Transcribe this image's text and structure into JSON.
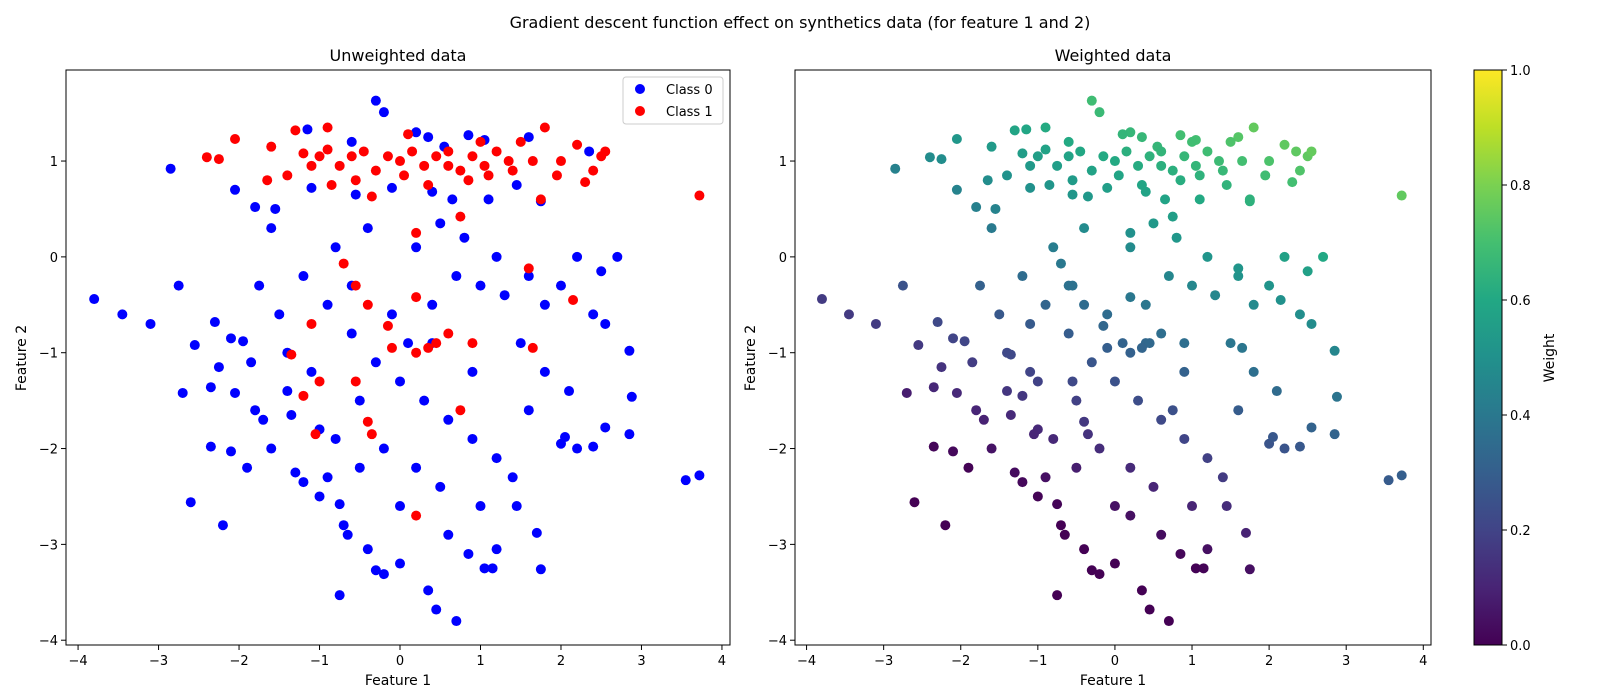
{
  "suptitle": "Gradient descent function effect on synthetics data (for feature 1 and 2)",
  "chart_data": [
    {
      "type": "scatter",
      "title": "Unweighted data",
      "xlabel": "Feature 1",
      "ylabel": "Feature 2",
      "xlim": [
        -4.15,
        4.1
      ],
      "ylim": [
        -4.05,
        1.95
      ],
      "xticks": [
        -4,
        -3,
        -2,
        -1,
        0,
        1,
        2,
        3,
        4
      ],
      "yticks": [
        -4,
        -3,
        -2,
        -1,
        0,
        1
      ],
      "xtick_labels": [
        "−4",
        "−3",
        "−2",
        "−1",
        "0",
        "1",
        "2",
        "3",
        "4"
      ],
      "ytick_labels": [
        "−4",
        "−3",
        "−2",
        "−1",
        "0",
        "1"
      ],
      "grid": false,
      "legend": {
        "position": "top-right",
        "entries": [
          "Class 0",
          "Class 1"
        ]
      },
      "series": [
        {
          "name": "Class 0",
          "color": "#0000ff",
          "points": [
            [
              -0.3,
              1.63
            ],
            [
              -0.2,
              1.51
            ],
            [
              0.35,
              1.25
            ],
            [
              0.85,
              1.27
            ],
            [
              1.05,
              1.22
            ],
            [
              1.6,
              1.25
            ],
            [
              -1.15,
              1.33
            ],
            [
              -0.6,
              1.2
            ],
            [
              0.2,
              1.3
            ],
            [
              0.55,
              1.15
            ],
            [
              -2.85,
              0.92
            ],
            [
              -2.05,
              0.7
            ],
            [
              -1.8,
              0.52
            ],
            [
              -1.55,
              0.5
            ],
            [
              -1.1,
              0.72
            ],
            [
              -0.55,
              0.65
            ],
            [
              -0.1,
              0.72
            ],
            [
              0.4,
              0.68
            ],
            [
              0.65,
              0.6
            ],
            [
              1.1,
              0.6
            ],
            [
              1.45,
              0.75
            ],
            [
              1.75,
              0.58
            ],
            [
              2.35,
              1.1
            ],
            [
              -3.8,
              -0.44
            ],
            [
              -3.45,
              -0.6
            ],
            [
              -3.1,
              -0.7
            ],
            [
              -2.75,
              -0.3
            ],
            [
              -2.55,
              -0.92
            ],
            [
              -2.3,
              -0.68
            ],
            [
              -2.25,
              -1.15
            ],
            [
              -2.7,
              -1.42
            ],
            [
              -2.35,
              -1.36
            ],
            [
              -2.6,
              -2.56
            ],
            [
              -2.2,
              -2.8
            ],
            [
              -2.35,
              -1.98
            ],
            [
              -2.1,
              -2.03
            ],
            [
              -2.05,
              -1.42
            ],
            [
              -2.1,
              -0.85
            ],
            [
              -1.95,
              -0.88
            ],
            [
              -1.85,
              -1.1
            ],
            [
              -1.9,
              -2.2
            ],
            [
              -1.8,
              -1.6
            ],
            [
              -1.7,
              -1.7
            ],
            [
              -1.75,
              -0.3
            ],
            [
              -1.6,
              0.3
            ],
            [
              -1.5,
              -0.6
            ],
            [
              -1.4,
              -1.0
            ],
            [
              -1.35,
              -1.65
            ],
            [
              -1.3,
              -2.25
            ],
            [
              -1.2,
              -2.35
            ],
            [
              -1.0,
              -1.8
            ],
            [
              -0.9,
              -2.3
            ],
            [
              -0.75,
              -2.58
            ],
            [
              -0.7,
              -2.8
            ],
            [
              -0.65,
              -2.9
            ],
            [
              -0.4,
              -3.05
            ],
            [
              -0.3,
              -3.27
            ],
            [
              -0.2,
              -3.31
            ],
            [
              0.0,
              -3.2
            ],
            [
              0.35,
              -3.48
            ],
            [
              0.45,
              -3.68
            ],
            [
              0.7,
              -3.8
            ],
            [
              -0.75,
              -3.53
            ],
            [
              0.85,
              -3.1
            ],
            [
              1.05,
              -3.25
            ],
            [
              1.15,
              -3.25
            ],
            [
              1.2,
              -3.05
            ],
            [
              1.45,
              -2.6
            ],
            [
              1.75,
              -3.26
            ],
            [
              1.7,
              -2.88
            ],
            [
              2.0,
              -1.95
            ],
            [
              2.05,
              -1.88
            ],
            [
              2.2,
              -2.0
            ],
            [
              2.4,
              -1.98
            ],
            [
              2.55,
              -1.78
            ],
            [
              2.85,
              -1.85
            ],
            [
              2.88,
              -1.46
            ],
            [
              2.85,
              -0.98
            ],
            [
              2.55,
              -0.7
            ],
            [
              2.4,
              -0.6
            ],
            [
              2.7,
              0.0
            ],
            [
              2.5,
              -0.15
            ],
            [
              2.2,
              0.0
            ],
            [
              2.0,
              -0.3
            ],
            [
              1.8,
              -0.5
            ],
            [
              1.6,
              -0.2
            ],
            [
              1.3,
              -0.4
            ],
            [
              1.0,
              -0.3
            ],
            [
              0.7,
              -0.2
            ],
            [
              0.4,
              -0.5
            ],
            [
              3.55,
              -2.33
            ],
            [
              3.72,
              -2.28
            ],
            [
              -0.9,
              -0.5
            ],
            [
              -0.6,
              -0.8
            ],
            [
              -0.3,
              -1.1
            ],
            [
              0.0,
              -1.3
            ],
            [
              0.3,
              -1.5
            ],
            [
              0.6,
              -1.7
            ],
            [
              0.9,
              -1.9
            ],
            [
              1.2,
              -2.1
            ],
            [
              -1.2,
              -0.2
            ],
            [
              -0.8,
              0.1
            ],
            [
              -0.4,
              0.3
            ],
            [
              0.2,
              0.1
            ],
            [
              0.5,
              0.35
            ],
            [
              0.8,
              0.2
            ],
            [
              1.2,
              0.0
            ],
            [
              1.5,
              -0.9
            ],
            [
              1.8,
              -1.2
            ],
            [
              2.1,
              -1.4
            ],
            [
              -0.1,
              -0.6
            ],
            [
              0.1,
              -0.9
            ],
            [
              -0.5,
              -1.5
            ],
            [
              -0.8,
              -1.9
            ],
            [
              -1.1,
              -1.2
            ],
            [
              -1.4,
              -1.4
            ],
            [
              -0.2,
              -2.0
            ],
            [
              0.2,
              -2.2
            ],
            [
              0.5,
              -2.4
            ],
            [
              -0.5,
              -2.2
            ],
            [
              -1.6,
              -2.0
            ],
            [
              -1.0,
              -2.5
            ],
            [
              0.0,
              -2.6
            ],
            [
              0.6,
              -2.9
            ],
            [
              1.0,
              -2.6
            ],
            [
              1.4,
              -2.3
            ],
            [
              1.6,
              -1.6
            ],
            [
              0.9,
              -1.2
            ],
            [
              0.4,
              -0.9
            ],
            [
              -0.6,
              -0.3
            ]
          ]
        },
        {
          "name": "Class 1",
          "color": "#ff0000",
          "points": [
            [
              -2.4,
              1.04
            ],
            [
              -2.25,
              1.02
            ],
            [
              -2.05,
              1.23
            ],
            [
              -1.6,
              1.15
            ],
            [
              -1.3,
              1.32
            ],
            [
              -1.2,
              1.08
            ],
            [
              -1.0,
              1.05
            ],
            [
              -0.9,
              1.12
            ],
            [
              -0.75,
              0.95
            ],
            [
              -0.6,
              1.05
            ],
            [
              -0.45,
              1.1
            ],
            [
              -0.3,
              0.9
            ],
            [
              -0.15,
              1.05
            ],
            [
              0.0,
              1.0
            ],
            [
              0.15,
              1.1
            ],
            [
              0.3,
              0.95
            ],
            [
              0.45,
              1.05
            ],
            [
              0.6,
              1.1
            ],
            [
              0.75,
              0.9
            ],
            [
              0.9,
              1.05
            ],
            [
              1.05,
              0.95
            ],
            [
              1.2,
              1.1
            ],
            [
              1.35,
              1.0
            ],
            [
              1.5,
              1.2
            ],
            [
              1.65,
              1.0
            ],
            [
              1.8,
              1.35
            ],
            [
              2.0,
              1.0
            ],
            [
              2.2,
              1.17
            ],
            [
              2.4,
              0.9
            ],
            [
              2.5,
              1.05
            ],
            [
              -1.65,
              0.8
            ],
            [
              -1.4,
              0.85
            ],
            [
              -1.1,
              0.95
            ],
            [
              -0.85,
              0.75
            ],
            [
              -0.55,
              0.8
            ],
            [
              -0.35,
              0.63
            ],
            [
              0.05,
              0.85
            ],
            [
              0.35,
              0.75
            ],
            [
              0.6,
              0.95
            ],
            [
              0.85,
              0.8
            ],
            [
              1.1,
              0.85
            ],
            [
              1.4,
              0.9
            ],
            [
              1.75,
              0.6
            ],
            [
              1.95,
              0.85
            ],
            [
              2.3,
              0.78
            ],
            [
              3.72,
              0.64
            ],
            [
              -0.9,
              1.35
            ],
            [
              0.1,
              1.28
            ],
            [
              1.0,
              1.2
            ],
            [
              2.55,
              1.1
            ],
            [
              -0.7,
              -0.07
            ],
            [
              0.2,
              0.25
            ],
            [
              0.75,
              0.42
            ],
            [
              1.6,
              -0.12
            ],
            [
              2.15,
              -0.45
            ],
            [
              -0.55,
              -0.3
            ],
            [
              -0.4,
              -0.5
            ],
            [
              -0.15,
              -0.72
            ],
            [
              0.2,
              -0.42
            ],
            [
              0.6,
              -0.8
            ],
            [
              -1.1,
              -0.7
            ],
            [
              -1.35,
              -1.02
            ],
            [
              -1.0,
              -1.3
            ],
            [
              -0.55,
              -1.3
            ],
            [
              -1.2,
              -1.45
            ],
            [
              -0.4,
              -1.72
            ],
            [
              -0.35,
              -1.85
            ],
            [
              -1.05,
              -1.85
            ],
            [
              0.2,
              -1.0
            ],
            [
              0.45,
              -0.9
            ],
            [
              0.9,
              -0.9
            ],
            [
              1.65,
              -0.95
            ],
            [
              0.75,
              -1.6
            ],
            [
              0.2,
              -2.7
            ],
            [
              -0.1,
              -0.95
            ],
            [
              0.35,
              -0.95
            ]
          ]
        }
      ]
    },
    {
      "type": "scatter",
      "title": "Weighted data",
      "xlabel": "Feature 1",
      "ylabel": "Feature 2",
      "xlim": [
        -4.15,
        4.1
      ],
      "ylim": [
        -4.05,
        1.95
      ],
      "xticks": [
        -4,
        -3,
        -2,
        -1,
        0,
        1,
        2,
        3,
        4
      ],
      "yticks": [
        -4,
        -3,
        -2,
        -1,
        0,
        1
      ],
      "xtick_labels": [
        "−4",
        "−3",
        "−2",
        "−1",
        "0",
        "1",
        "2",
        "3",
        "4"
      ],
      "ytick_labels": [
        "−4",
        "−3",
        "−2",
        "−1",
        "0",
        "1"
      ],
      "grid": false,
      "colormap": "viridis",
      "colorbar": {
        "label": "Weight",
        "range": [
          0.0,
          1.0
        ],
        "ticks": [
          0.0,
          0.2,
          0.4,
          0.6,
          0.8,
          1.0
        ],
        "tick_labels": [
          "0.0",
          "0.2",
          "0.4",
          "0.6",
          "0.8",
          "1.0"
        ]
      },
      "note": "Same points as the unweighted plot; each point colored by its weight (weight increases with Feature 2 and Feature 1)."
    }
  ]
}
